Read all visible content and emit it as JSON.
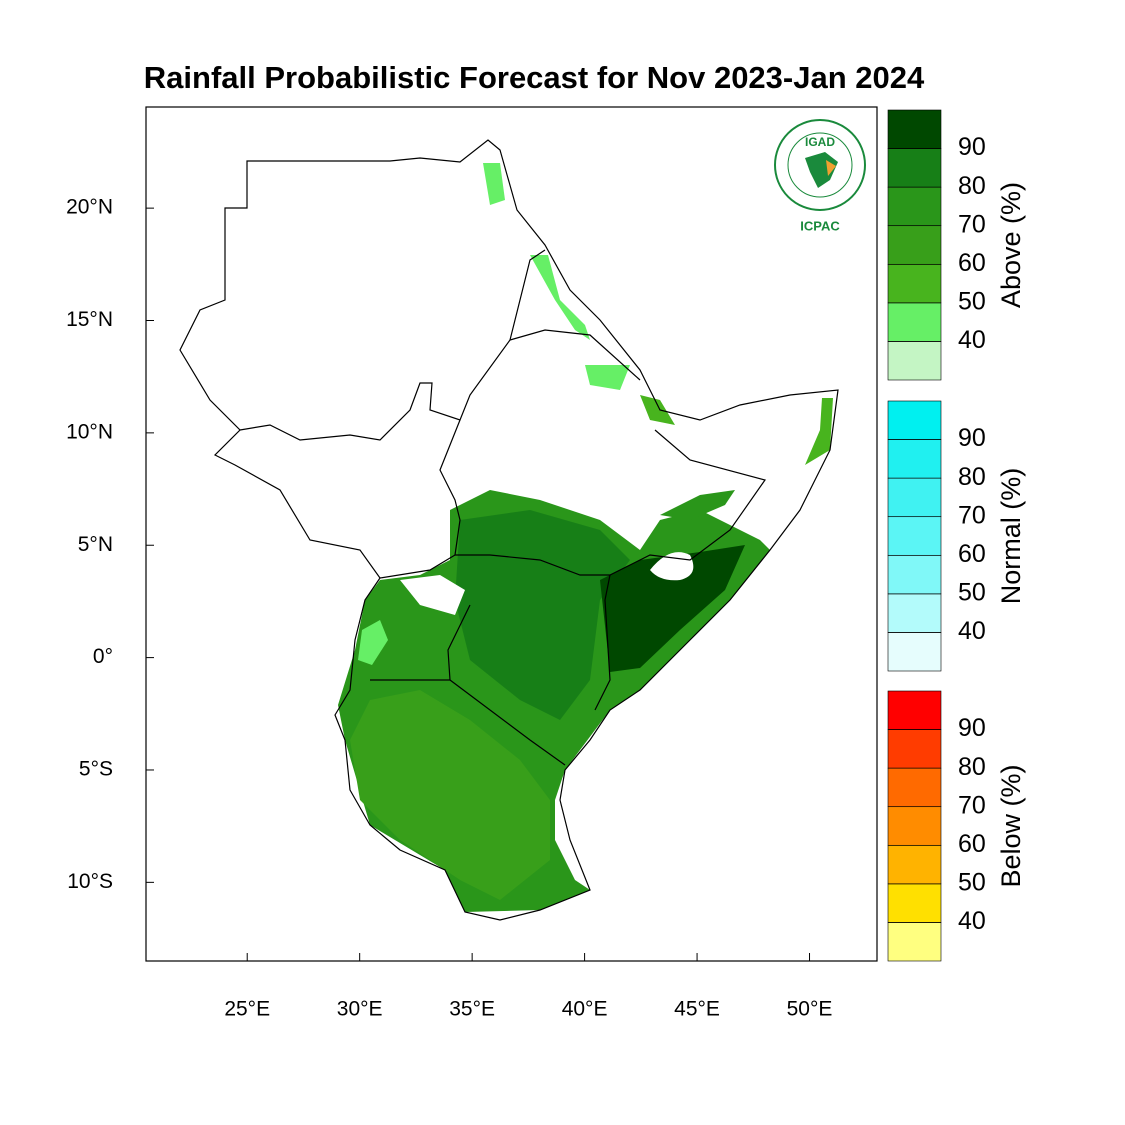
{
  "title": "Rainfall Probabilistic Forecast for Nov 2023-Jan 2024",
  "map": {
    "xlim": [
      20.5,
      53
    ],
    "ylim": [
      -13.5,
      24.5
    ],
    "xticks": [
      {
        "value": 25,
        "label": "25°E"
      },
      {
        "value": 30,
        "label": "30°E"
      },
      {
        "value": 35,
        "label": "35°E"
      },
      {
        "value": 40,
        "label": "40°E"
      },
      {
        "value": 45,
        "label": "45°E"
      },
      {
        "value": 50,
        "label": "50°E"
      }
    ],
    "yticks": [
      {
        "value": 20,
        "label": "20°N"
      },
      {
        "value": 15,
        "label": "15°N"
      },
      {
        "value": 10,
        "label": "10°N"
      },
      {
        "value": 5,
        "label": "5°N"
      },
      {
        "value": 0,
        "label": "0°"
      },
      {
        "value": -5,
        "label": "5°S"
      },
      {
        "value": -10,
        "label": "10°S"
      }
    ]
  },
  "logo": {
    "top": "IGAD",
    "bottom": "ICPAC"
  },
  "legends": [
    {
      "label": "Above (%)",
      "clim": [
        30,
        100
      ],
      "ticks": [
        40,
        50,
        60,
        70,
        80,
        90
      ],
      "colors": [
        "#c4f5c4",
        "#66ef66",
        "#48b41e",
        "#389f1a",
        "#2a961a",
        "#177f17",
        "#004800"
      ]
    },
    {
      "label": "Normal (%)",
      "clim": [
        30,
        100
      ],
      "ticks": [
        40,
        50,
        60,
        70,
        80,
        90
      ],
      "colors": [
        "#e6fdfd",
        "#b3fbfb",
        "#80f8f8",
        "#5bf5f5",
        "#40f2f2",
        "#20f0f0",
        "#00f0f0"
      ]
    },
    {
      "label": "Below (%)",
      "clim": [
        30,
        100
      ],
      "ticks": [
        40,
        50,
        60,
        70,
        80,
        90
      ],
      "colors": [
        "#ffff80",
        "#ffe000",
        "#ffb300",
        "#ff8c00",
        "#ff6a00",
        "#ff3c00",
        "#ff0000"
      ]
    }
  ]
}
